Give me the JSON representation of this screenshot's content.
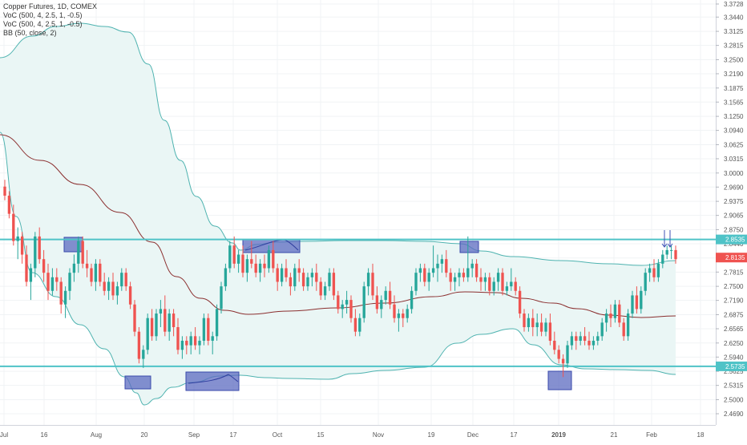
{
  "legend": {
    "title": "Copper Futures, 1D, COMEX",
    "voc1": "VoC (500, 4, 2.5, 1, -0.5)",
    "voc2": "VoC (500, 4, 2.5, 1, -0.5)",
    "bb": "BB (50, close, 2)"
  },
  "colors": {
    "up": "#26a69a",
    "down": "#ef5350",
    "level_line": "#4fc3c7",
    "bb_band": "#4fb3b0",
    "bb_fill": "#eaf6f5",
    "bb_basis": "#8b2f2f",
    "highlight_box": "#5c6bc0",
    "arrow": "#3f51b5"
  },
  "chart_data": {
    "type": "candlestick",
    "symbol": "Copper Futures",
    "interval": "1D",
    "exchange": "COMEX",
    "ylim": [
      2.4829,
      3.3728
    ],
    "y_ticks": [
      "3.3728",
      "3.3440",
      "3.3125",
      "3.2815",
      "3.2500",
      "3.2190",
      "3.1875",
      "3.1565",
      "3.1250",
      "3.0940",
      "3.0625",
      "3.0315",
      "3.0000",
      "2.9690",
      "2.9375",
      "2.9065",
      "2.8750",
      "2.8440",
      "2.8125",
      "2.7815",
      "2.7500",
      "2.7190",
      "2.6875",
      "2.6565",
      "2.6250",
      "2.5940",
      "2.5625",
      "2.5315",
      "2.5000",
      "2.4690"
    ],
    "x_ticks": [
      "Jul",
      "16",
      "Aug",
      "20",
      "Sep",
      "17",
      "Oct",
      "15",
      "Nov",
      "19",
      "Dec",
      "17",
      "2019",
      "21",
      "Feb",
      "18"
    ],
    "horizontal_levels": [
      {
        "price": 2.8535,
        "label": "2.8535"
      },
      {
        "price": 2.5735,
        "label": "2.5735"
      }
    ],
    "last_price": {
      "price": 2.8135,
      "label": "2.8135"
    },
    "candles": [
      [
        2.97,
        2.985,
        2.94,
        2.95
      ],
      [
        2.95,
        2.96,
        2.9,
        2.91
      ],
      [
        2.91,
        2.93,
        2.84,
        2.85
      ],
      [
        2.85,
        2.88,
        2.81,
        2.86
      ],
      [
        2.86,
        2.87,
        2.8,
        2.82
      ],
      [
        2.82,
        2.84,
        2.75,
        2.76
      ],
      [
        2.76,
        2.8,
        2.72,
        2.79
      ],
      [
        2.79,
        2.87,
        2.77,
        2.86
      ],
      [
        2.86,
        2.88,
        2.8,
        2.81
      ],
      [
        2.81,
        2.83,
        2.76,
        2.78
      ],
      [
        2.78,
        2.8,
        2.72,
        2.74
      ],
      [
        2.74,
        2.79,
        2.73,
        2.77
      ],
      [
        2.77,
        2.79,
        2.74,
        2.76
      ],
      [
        2.76,
        2.77,
        2.69,
        2.71
      ],
      [
        2.71,
        2.75,
        2.68,
        2.74
      ],
      [
        2.74,
        2.79,
        2.72,
        2.78
      ],
      [
        2.78,
        2.82,
        2.76,
        2.8
      ],
      [
        2.8,
        2.86,
        2.78,
        2.85
      ],
      [
        2.85,
        2.86,
        2.79,
        2.8
      ],
      [
        2.8,
        2.83,
        2.77,
        2.79
      ],
      [
        2.79,
        2.8,
        2.75,
        2.76
      ],
      [
        2.76,
        2.81,
        2.74,
        2.8
      ],
      [
        2.8,
        2.81,
        2.75,
        2.76
      ],
      [
        2.76,
        2.78,
        2.73,
        2.74
      ],
      [
        2.74,
        2.77,
        2.72,
        2.76
      ],
      [
        2.76,
        2.78,
        2.72,
        2.73
      ],
      [
        2.73,
        2.76,
        2.71,
        2.75
      ],
      [
        2.75,
        2.79,
        2.74,
        2.78
      ],
      [
        2.78,
        2.79,
        2.74,
        2.75
      ],
      [
        2.75,
        2.76,
        2.7,
        2.71
      ],
      [
        2.71,
        2.72,
        2.64,
        2.65
      ],
      [
        2.65,
        2.66,
        2.58,
        2.59
      ],
      [
        2.59,
        2.62,
        2.57,
        2.61
      ],
      [
        2.61,
        2.69,
        2.6,
        2.68
      ],
      [
        2.68,
        2.7,
        2.63,
        2.64
      ],
      [
        2.64,
        2.7,
        2.63,
        2.69
      ],
      [
        2.69,
        2.72,
        2.66,
        2.7
      ],
      [
        2.7,
        2.73,
        2.64,
        2.65
      ],
      [
        2.65,
        2.7,
        2.63,
        2.69
      ],
      [
        2.69,
        2.7,
        2.64,
        2.66
      ],
      [
        2.66,
        2.68,
        2.6,
        2.61
      ],
      [
        2.61,
        2.64,
        2.59,
        2.63
      ],
      [
        2.63,
        2.64,
        2.6,
        2.62
      ],
      [
        2.62,
        2.65,
        2.6,
        2.64
      ],
      [
        2.64,
        2.66,
        2.61,
        2.62
      ],
      [
        2.62,
        2.64,
        2.6,
        2.63
      ],
      [
        2.63,
        2.69,
        2.62,
        2.68
      ],
      [
        2.68,
        2.69,
        2.62,
        2.63
      ],
      [
        2.63,
        2.65,
        2.6,
        2.64
      ],
      [
        2.64,
        2.71,
        2.63,
        2.7
      ],
      [
        2.7,
        2.76,
        2.69,
        2.75
      ],
      [
        2.75,
        2.8,
        2.74,
        2.79
      ],
      [
        2.79,
        2.85,
        2.78,
        2.84
      ],
      [
        2.84,
        2.86,
        2.79,
        2.8
      ],
      [
        2.8,
        2.83,
        2.78,
        2.82
      ],
      [
        2.82,
        2.84,
        2.77,
        2.78
      ],
      [
        2.78,
        2.82,
        2.76,
        2.81
      ],
      [
        2.81,
        2.85,
        2.79,
        2.8
      ],
      [
        2.8,
        2.82,
        2.77,
        2.78
      ],
      [
        2.78,
        2.81,
        2.76,
        2.8
      ],
      [
        2.8,
        2.82,
        2.77,
        2.79
      ],
      [
        2.79,
        2.84,
        2.78,
        2.83
      ],
      [
        2.83,
        2.85,
        2.78,
        2.79
      ],
      [
        2.79,
        2.8,
        2.74,
        2.76
      ],
      [
        2.76,
        2.8,
        2.75,
        2.79
      ],
      [
        2.79,
        2.81,
        2.76,
        2.77
      ],
      [
        2.77,
        2.78,
        2.73,
        2.75
      ],
      [
        2.75,
        2.8,
        2.74,
        2.79
      ],
      [
        2.79,
        2.81,
        2.76,
        2.78
      ],
      [
        2.78,
        2.79,
        2.74,
        2.75
      ],
      [
        2.75,
        2.78,
        2.74,
        2.77
      ],
      [
        2.77,
        2.79,
        2.75,
        2.78
      ],
      [
        2.78,
        2.8,
        2.74,
        2.76
      ],
      [
        2.76,
        2.77,
        2.72,
        2.73
      ],
      [
        2.73,
        2.76,
        2.72,
        2.75
      ],
      [
        2.75,
        2.79,
        2.74,
        2.78
      ],
      [
        2.78,
        2.79,
        2.72,
        2.73
      ],
      [
        2.73,
        2.74,
        2.69,
        2.7
      ],
      [
        2.7,
        2.72,
        2.68,
        2.71
      ],
      [
        2.71,
        2.74,
        2.69,
        2.72
      ],
      [
        2.72,
        2.73,
        2.67,
        2.68
      ],
      [
        2.68,
        2.7,
        2.64,
        2.65
      ],
      [
        2.65,
        2.69,
        2.64,
        2.68
      ],
      [
        2.68,
        2.76,
        2.67,
        2.75
      ],
      [
        2.75,
        2.79,
        2.73,
        2.78
      ],
      [
        2.78,
        2.8,
        2.72,
        2.73
      ],
      [
        2.73,
        2.75,
        2.69,
        2.7
      ],
      [
        2.7,
        2.73,
        2.68,
        2.72
      ],
      [
        2.72,
        2.75,
        2.71,
        2.74
      ],
      [
        2.74,
        2.76,
        2.7,
        2.71
      ],
      [
        2.71,
        2.73,
        2.67,
        2.68
      ],
      [
        2.68,
        2.7,
        2.65,
        2.69
      ],
      [
        2.69,
        2.7,
        2.66,
        2.68
      ],
      [
        2.68,
        2.71,
        2.67,
        2.7
      ],
      [
        2.7,
        2.75,
        2.69,
        2.74
      ],
      [
        2.74,
        2.79,
        2.73,
        2.78
      ],
      [
        2.78,
        2.8,
        2.76,
        2.79
      ],
      [
        2.79,
        2.8,
        2.75,
        2.76
      ],
      [
        2.76,
        2.79,
        2.74,
        2.78
      ],
      [
        2.78,
        2.84,
        2.77,
        2.79
      ],
      [
        2.79,
        2.82,
        2.76,
        2.8
      ],
      [
        2.8,
        2.82,
        2.78,
        2.81
      ],
      [
        2.81,
        2.83,
        2.77,
        2.78
      ],
      [
        2.78,
        2.79,
        2.74,
        2.76
      ],
      [
        2.76,
        2.78,
        2.74,
        2.77
      ],
      [
        2.77,
        2.79,
        2.75,
        2.78
      ],
      [
        2.78,
        2.79,
        2.76,
        2.77
      ],
      [
        2.77,
        2.86,
        2.76,
        2.79
      ],
      [
        2.79,
        2.81,
        2.77,
        2.8
      ],
      [
        2.8,
        2.81,
        2.76,
        2.77
      ],
      [
        2.77,
        2.79,
        2.74,
        2.76
      ],
      [
        2.76,
        2.78,
        2.74,
        2.77
      ],
      [
        2.77,
        2.78,
        2.73,
        2.74
      ],
      [
        2.74,
        2.77,
        2.73,
        2.76
      ],
      [
        2.76,
        2.79,
        2.74,
        2.78
      ],
      [
        2.78,
        2.79,
        2.73,
        2.74
      ],
      [
        2.74,
        2.76,
        2.73,
        2.75
      ],
      [
        2.75,
        2.79,
        2.74,
        2.76
      ],
      [
        2.76,
        2.77,
        2.73,
        2.74
      ],
      [
        2.74,
        2.75,
        2.68,
        2.69
      ],
      [
        2.69,
        2.7,
        2.65,
        2.66
      ],
      [
        2.66,
        2.69,
        2.65,
        2.68
      ],
      [
        2.68,
        2.7,
        2.64,
        2.66
      ],
      [
        2.66,
        2.69,
        2.64,
        2.67
      ],
      [
        2.67,
        2.69,
        2.64,
        2.65
      ],
      [
        2.65,
        2.68,
        2.64,
        2.67
      ],
      [
        2.67,
        2.69,
        2.62,
        2.63
      ],
      [
        2.63,
        2.65,
        2.6,
        2.61
      ],
      [
        2.61,
        2.62,
        2.58,
        2.59
      ],
      [
        2.59,
        2.6,
        2.55,
        2.58
      ],
      [
        2.58,
        2.63,
        2.57,
        2.62
      ],
      [
        2.62,
        2.65,
        2.61,
        2.64
      ],
      [
        2.64,
        2.65,
        2.61,
        2.63
      ],
      [
        2.63,
        2.65,
        2.62,
        2.64
      ],
      [
        2.64,
        2.66,
        2.62,
        2.63
      ],
      [
        2.63,
        2.65,
        2.61,
        2.62
      ],
      [
        2.62,
        2.64,
        2.61,
        2.63
      ],
      [
        2.63,
        2.65,
        2.62,
        2.64
      ],
      [
        2.64,
        2.68,
        2.63,
        2.67
      ],
      [
        2.67,
        2.7,
        2.65,
        2.69
      ],
      [
        2.69,
        2.71,
        2.66,
        2.68
      ],
      [
        2.68,
        2.72,
        2.67,
        2.71
      ],
      [
        2.71,
        2.72,
        2.66,
        2.67
      ],
      [
        2.67,
        2.68,
        2.63,
        2.64
      ],
      [
        2.64,
        2.7,
        2.63,
        2.69
      ],
      [
        2.69,
        2.74,
        2.68,
        2.73
      ],
      [
        2.73,
        2.75,
        2.69,
        2.7
      ],
      [
        2.7,
        2.75,
        2.69,
        2.74
      ],
      [
        2.74,
        2.79,
        2.73,
        2.78
      ],
      [
        2.78,
        2.8,
        2.76,
        2.79
      ],
      [
        2.79,
        2.81,
        2.76,
        2.77
      ],
      [
        2.77,
        2.81,
        2.76,
        2.8
      ],
      [
        2.8,
        2.83,
        2.79,
        2.82
      ],
      [
        2.82,
        2.84,
        2.81,
        2.83
      ],
      [
        2.83,
        2.84,
        2.81,
        2.83
      ],
      [
        2.83,
        2.84,
        2.8,
        2.81
      ]
    ]
  }
}
